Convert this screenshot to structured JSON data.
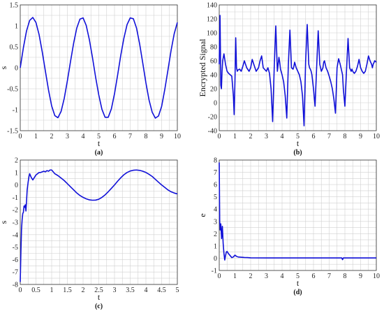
{
  "chart_data": [
    {
      "panel": "(a)",
      "type": "line",
      "xlabel": "t",
      "ylabel": "s",
      "xlim": [
        0,
        10
      ],
      "ylim": [
        -1.5,
        1.5
      ],
      "xticks": [
        0,
        1,
        2,
        3,
        4,
        5,
        6,
        7,
        8,
        9,
        10
      ],
      "yticks": [
        -1.5,
        -1,
        -0.5,
        0,
        0.5,
        1,
        1.5
      ],
      "grid": true,
      "series": [
        {
          "x": [
            0,
            0.2,
            0.4,
            0.6,
            0.8,
            1.0,
            1.2,
            1.4,
            1.6,
            1.8,
            2.0,
            2.2,
            2.4,
            2.6,
            2.8,
            3.0,
            3.2,
            3.4,
            3.6,
            3.8,
            4.0,
            4.2,
            4.4,
            4.6,
            4.8,
            5.0,
            5.2,
            5.4,
            5.6,
            5.8,
            6.0,
            6.2,
            6.4,
            6.6,
            6.8,
            7.0,
            7.2,
            7.4,
            7.6,
            7.8,
            8.0,
            8.2,
            8.4,
            8.6,
            8.8,
            9.0,
            9.2,
            9.4,
            9.6,
            9.8,
            10.0
          ],
          "y": [
            0,
            0.48,
            0.88,
            1.13,
            1.2,
            1.08,
            0.79,
            0.38,
            -0.08,
            -0.53,
            -0.91,
            -1.14,
            -1.19,
            -1.04,
            -0.73,
            -0.31,
            0.15,
            0.59,
            0.95,
            1.16,
            1.19,
            1.01,
            0.67,
            0.24,
            -0.23,
            -0.65,
            -0.99,
            -1.18,
            -1.18,
            -0.98,
            -0.62,
            -0.17,
            0.3,
            0.71,
            1.03,
            1.19,
            1.17,
            0.95,
            0.57,
            0.11,
            -0.36,
            -0.77,
            -1.06,
            -1.2,
            -1.15,
            -0.92,
            -0.52,
            -0.06,
            0.41,
            0.81,
            1.08
          ]
        }
      ]
    },
    {
      "panel": "(b)",
      "type": "line",
      "xlabel": "t",
      "ylabel": "Encrypted Signal",
      "xlim": [
        0,
        10
      ],
      "ylim": [
        -40,
        140
      ],
      "xticks": [
        0,
        1,
        2,
        3,
        4,
        5,
        6,
        7,
        8,
        9,
        10
      ],
      "yticks": [
        -40,
        -20,
        0,
        20,
        40,
        60,
        80,
        100,
        120,
        140
      ],
      "grid": true,
      "series": [
        {
          "x": [
            0,
            0.05,
            0.1,
            0.14,
            0.18,
            0.22,
            0.3,
            0.4,
            0.5,
            0.6,
            0.7,
            0.8,
            0.9,
            0.95,
            1.0,
            1.05,
            1.1,
            1.15,
            1.2,
            1.3,
            1.4,
            1.5,
            1.6,
            1.75,
            1.9,
            2.0,
            2.1,
            2.2,
            2.35,
            2.5,
            2.6,
            2.7,
            2.8,
            3.0,
            3.1,
            3.2,
            3.3,
            3.4,
            3.5,
            3.6,
            3.7,
            3.75,
            3.8,
            3.85,
            3.9,
            4.0,
            4.1,
            4.2,
            4.3,
            4.4,
            4.5,
            4.6,
            4.7,
            4.75,
            4.8,
            4.9,
            5.0,
            5.1,
            5.2,
            5.3,
            5.4,
            5.5,
            5.6,
            5.7,
            5.75,
            5.8,
            5.85,
            5.9,
            6.0,
            6.1,
            6.2,
            6.3,
            6.4,
            6.5,
            6.6,
            6.65,
            6.7,
            6.75,
            6.8,
            6.9,
            7.0,
            7.1,
            7.2,
            7.3,
            7.4,
            7.5,
            7.6,
            7.7,
            7.8,
            7.85,
            7.9,
            8.0,
            8.1,
            8.2,
            8.3,
            8.4,
            8.45,
            8.5,
            8.6,
            8.7,
            8.8,
            8.9,
            9.0,
            9.1,
            9.2,
            9.3,
            9.4,
            9.5,
            9.6,
            9.7,
            9.75,
            9.8,
            9.9,
            10.0
          ],
          "y": [
            55,
            125,
            25,
            20,
            45,
            60,
            70,
            55,
            45,
            42,
            40,
            38,
            10,
            -17,
            30,
            93,
            50,
            45,
            47,
            48,
            45,
            52,
            60,
            50,
            45,
            50,
            62,
            55,
            45,
            50,
            60,
            67,
            50,
            45,
            50,
            42,
            20,
            -27,
            50,
            110,
            45,
            55,
            65,
            58,
            48,
            40,
            30,
            10,
            -22,
            55,
            104,
            50,
            48,
            52,
            58,
            50,
            45,
            40,
            30,
            10,
            -33,
            60,
            112,
            55,
            50,
            48,
            45,
            40,
            20,
            -5,
            50,
            103,
            55,
            45,
            50,
            58,
            60,
            55,
            50,
            45,
            38,
            30,
            20,
            5,
            -15,
            50,
            63,
            55,
            45,
            40,
            20,
            -5,
            45,
            92,
            50,
            45,
            48,
            45,
            42,
            45,
            52,
            62,
            50,
            45,
            42,
            45,
            55,
            67,
            60,
            55,
            50,
            55,
            60,
            58
          ]
        }
      ]
    },
    {
      "panel": "(c)",
      "type": "line",
      "xlabel": "t",
      "ylabel": "s",
      "xlim": [
        0,
        5
      ],
      "ylim": [
        -8,
        2
      ],
      "xticks": [
        0,
        0.5,
        1,
        1.5,
        2,
        2.5,
        3,
        3.5,
        4,
        4.5,
        5
      ],
      "yticks": [
        -8,
        -7,
        -6,
        -5,
        -4,
        -3,
        -2,
        -1,
        0,
        1,
        2
      ],
      "grid": true,
      "series": [
        {
          "x": [
            0,
            0.02,
            0.04,
            0.06,
            0.08,
            0.1,
            0.12,
            0.14,
            0.16,
            0.18,
            0.2,
            0.22,
            0.25,
            0.28,
            0.3,
            0.35,
            0.4,
            0.45,
            0.5,
            0.55,
            0.6,
            0.65,
            0.7,
            0.75,
            0.8,
            0.85,
            0.9,
            0.95,
            1.0,
            1.05,
            1.1,
            1.2,
            1.3,
            1.4,
            1.5,
            1.6,
            1.7,
            1.8,
            1.9,
            2.0,
            2.1,
            2.2,
            2.3,
            2.4,
            2.5,
            2.6,
            2.7,
            2.8,
            2.9,
            3.0,
            3.1,
            3.2,
            3.3,
            3.4,
            3.5,
            3.6,
            3.7,
            3.8,
            3.9,
            4.0,
            4.1,
            4.2,
            4.3,
            4.4,
            4.5,
            4.6,
            4.7,
            4.8,
            4.9,
            5.0
          ],
          "y": [
            -7.8,
            -5.5,
            -3.6,
            -2.8,
            -2.3,
            -2.2,
            -1.7,
            -1.8,
            -1.6,
            -2.1,
            -1.3,
            -0.4,
            0.2,
            0.7,
            0.9,
            0.6,
            0.4,
            0.6,
            0.8,
            0.9,
            1.0,
            1.0,
            1.05,
            1.1,
            1.05,
            1.15,
            1.1,
            1.2,
            1.2,
            1.05,
            0.9,
            0.75,
            0.55,
            0.35,
            0.1,
            -0.15,
            -0.4,
            -0.65,
            -0.85,
            -1.0,
            -1.12,
            -1.2,
            -1.23,
            -1.22,
            -1.15,
            -1.0,
            -0.8,
            -0.55,
            -0.28,
            0.0,
            0.3,
            0.58,
            0.82,
            1.0,
            1.12,
            1.18,
            1.2,
            1.17,
            1.1,
            1.0,
            0.85,
            0.68,
            0.45,
            0.22,
            0.0,
            -0.2,
            -0.4,
            -0.55,
            -0.65,
            -0.72
          ]
        }
      ]
    },
    {
      "panel": "(d)",
      "type": "line",
      "xlabel": "t",
      "ylabel": "e",
      "xlim": [
        0,
        10
      ],
      "ylim": [
        -1,
        8
      ],
      "xticks": [
        0,
        1,
        2,
        3,
        4,
        5,
        6,
        7,
        8,
        9,
        10
      ],
      "yticks": [
        -1,
        0,
        1,
        2,
        3,
        4,
        5,
        6,
        7,
        8
      ],
      "grid": true,
      "series": [
        {
          "x": [
            0,
            0.03,
            0.06,
            0.1,
            0.15,
            0.2,
            0.25,
            0.3,
            0.35,
            0.4,
            0.45,
            0.5,
            0.55,
            0.6,
            0.7,
            0.8,
            0.9,
            1.0,
            1.1,
            1.2,
            1.4,
            1.6,
            1.8,
            2.0,
            3.0,
            4.0,
            5.0,
            6.0,
            7.0,
            7.5,
            7.8,
            7.85,
            7.9,
            8.0,
            9.0,
            10.0
          ],
          "y": [
            7.8,
            3.0,
            2.3,
            2.8,
            1.6,
            2.6,
            1.2,
            0.4,
            -0.15,
            0.2,
            0.5,
            0.55,
            0.45,
            0.35,
            0.2,
            0.05,
            0.1,
            0.25,
            0.15,
            0.1,
            0.08,
            0.06,
            0.05,
            0.03,
            0.02,
            0.02,
            0.02,
            0.02,
            0.02,
            0.02,
            0.02,
            -0.12,
            0.02,
            0.02,
            0.02,
            0.02
          ]
        }
      ]
    }
  ]
}
